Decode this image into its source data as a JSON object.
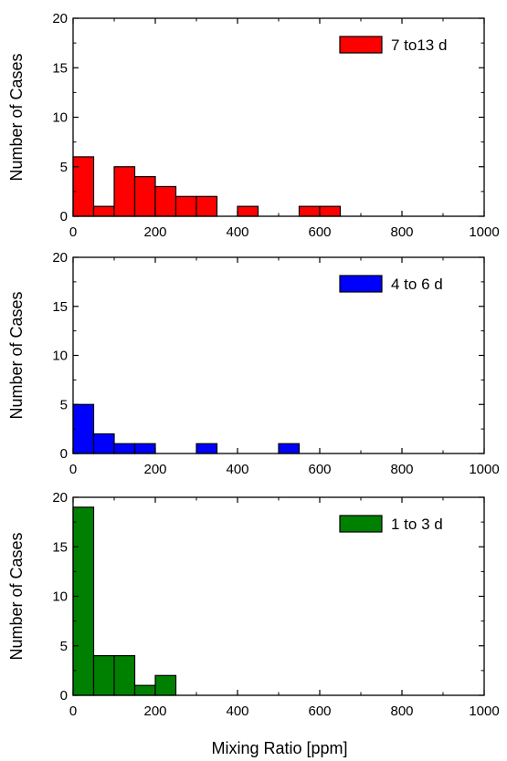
{
  "figure": {
    "xlabel": "Mixing Ratio [ppm]"
  },
  "chart_data": [
    {
      "type": "bar",
      "legend": "7 to13 d",
      "legend_position": "top-right",
      "color": "#ff0000",
      "ylabel": "Number of Cases",
      "xlim": [
        0,
        1000
      ],
      "ylim": [
        0,
        20
      ],
      "xticks": [
        "0",
        "200",
        "400",
        "600",
        "800",
        "1000"
      ],
      "yticks": [
        "0",
        "5",
        "10",
        "15",
        "20"
      ],
      "bin_width": 50,
      "bins": [
        {
          "x": 0,
          "count": 6
        },
        {
          "x": 50,
          "count": 1
        },
        {
          "x": 100,
          "count": 5
        },
        {
          "x": 150,
          "count": 4
        },
        {
          "x": 200,
          "count": 3
        },
        {
          "x": 250,
          "count": 2
        },
        {
          "x": 300,
          "count": 2
        },
        {
          "x": 400,
          "count": 1
        },
        {
          "x": 550,
          "count": 1
        },
        {
          "x": 600,
          "count": 1
        }
      ]
    },
    {
      "type": "bar",
      "legend": "4 to 6 d",
      "legend_position": "top-right",
      "color": "#0000ff",
      "ylabel": "Number of Cases",
      "xlim": [
        0,
        1000
      ],
      "ylim": [
        0,
        20
      ],
      "xticks": [
        "0",
        "200",
        "400",
        "600",
        "800",
        "1000"
      ],
      "yticks": [
        "0",
        "5",
        "10",
        "15",
        "20"
      ],
      "bin_width": 50,
      "bins": [
        {
          "x": 0,
          "count": 5
        },
        {
          "x": 50,
          "count": 2
        },
        {
          "x": 100,
          "count": 1
        },
        {
          "x": 150,
          "count": 1
        },
        {
          "x": 300,
          "count": 1
        },
        {
          "x": 500,
          "count": 1
        }
      ]
    },
    {
      "type": "bar",
      "legend": "1 to 3 d",
      "legend_position": "top-right",
      "color": "#008000",
      "ylabel": "Number of Cases",
      "xlim": [
        0,
        1000
      ],
      "ylim": [
        0,
        20
      ],
      "xticks": [
        "0",
        "200",
        "400",
        "600",
        "800",
        "1000"
      ],
      "yticks": [
        "0",
        "5",
        "10",
        "15",
        "20"
      ],
      "bin_width": 50,
      "bins": [
        {
          "x": 0,
          "count": 19
        },
        {
          "x": 50,
          "count": 4
        },
        {
          "x": 100,
          "count": 4
        },
        {
          "x": 150,
          "count": 1
        },
        {
          "x": 200,
          "count": 2
        }
      ]
    }
  ]
}
